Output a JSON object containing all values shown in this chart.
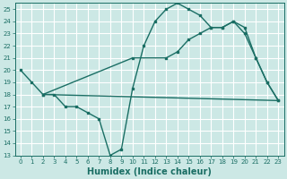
{
  "xlabel": "Humidex (Indice chaleur)",
  "bg_color": "#cce8e5",
  "grid_color": "#b8d8d5",
  "line_color": "#1a6e64",
  "xlim": [
    -0.5,
    23.5
  ],
  "ylim": [
    13,
    25.5
  ],
  "xticks": [
    0,
    1,
    2,
    3,
    4,
    5,
    6,
    7,
    8,
    9,
    10,
    11,
    12,
    13,
    14,
    15,
    16,
    17,
    18,
    19,
    20,
    21,
    22,
    23
  ],
  "yticks": [
    13,
    14,
    15,
    16,
    17,
    18,
    19,
    20,
    21,
    22,
    23,
    24,
    25
  ],
  "line1_x": [
    0,
    1,
    2,
    3,
    4,
    5,
    6,
    7,
    8,
    9,
    10,
    11,
    12,
    13,
    14,
    15,
    16,
    17,
    18,
    19,
    20,
    21,
    22,
    23
  ],
  "line1_y": [
    20,
    19,
    18,
    18,
    17,
    17,
    16.5,
    16,
    13,
    13.5,
    18.5,
    22,
    24,
    25,
    25.5,
    25,
    24.5,
    23.5,
    23.5,
    24,
    23,
    21,
    19,
    17.5
  ],
  "line2_x": [
    2,
    23
  ],
  "line2_y": [
    18,
    17.5
  ],
  "line3_x": [
    2,
    10,
    13,
    14,
    15,
    16,
    17,
    18,
    19,
    20,
    21,
    22,
    23
  ],
  "line3_y": [
    18,
    21,
    21,
    21.5,
    22.5,
    23,
    23.5,
    23.5,
    24,
    23.5,
    21,
    19,
    17.5
  ],
  "xlabel_fontsize": 7,
  "tick_fontsize": 5,
  "linewidth": 1.0,
  "markersize": 2.0
}
